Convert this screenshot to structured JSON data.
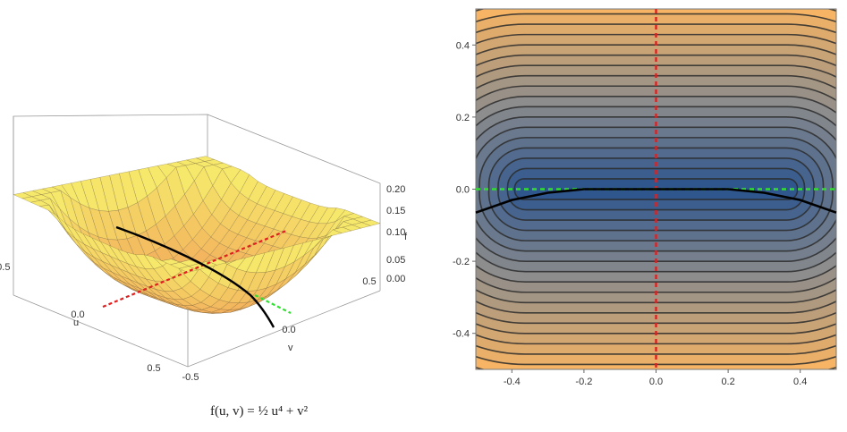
{
  "chart_data": [
    {
      "type": "surface3d",
      "x_axis": {
        "label": "u",
        "ticks": [
          "-0.5",
          "0.0",
          "0.5"
        ]
      },
      "y_axis": {
        "label": "v",
        "ticks": [
          "-0.5",
          "0.0",
          "0.5"
        ]
      },
      "z_axis": {
        "label": "f",
        "ticks": [
          "0.00",
          "0.05",
          "0.10",
          "0.15",
          "0.20"
        ]
      },
      "xlim": [
        -0.5,
        0.5
      ],
      "ylim": [
        -0.5,
        0.5
      ],
      "zlim": [
        0.0,
        0.22
      ],
      "mesh_lines": 20,
      "surface_color": [
        "#f6e86a",
        "#f2a65a"
      ],
      "curves": [
        {
          "name": "u-axis",
          "style": "dashed",
          "color": "#e02020"
        },
        {
          "name": "v-axis",
          "style": "dashed",
          "color": "#33dd33"
        },
        {
          "name": "path",
          "style": "solid",
          "color": "#000000"
        }
      ]
    },
    {
      "type": "contour",
      "x_ticks": [
        "-0.4",
        "-0.2",
        "0.0",
        "0.2",
        "0.4"
      ],
      "y_ticks": [
        "-0.4",
        "-0.2",
        "0.0",
        "0.2",
        "0.4"
      ],
      "xlim": [
        -0.5,
        0.5
      ],
      "ylim": [
        -0.5,
        0.5
      ],
      "levels": 18,
      "colors": {
        "low": "#23508e",
        "mid": "#8d8d8d",
        "high": "#f6b464"
      },
      "lines": [
        {
          "name": "vertical-dashed",
          "x": 0.0,
          "color": "#e02020",
          "style": "dashed"
        },
        {
          "name": "horizontal-dashed",
          "y": 0.0,
          "color": "#33dd33",
          "style": "dashed"
        },
        {
          "name": "curve",
          "points": [
            [
              -0.5,
              -0.065
            ],
            [
              -0.4,
              -0.03
            ],
            [
              -0.3,
              -0.01
            ],
            [
              -0.2,
              0.0
            ],
            [
              -0.1,
              0.0
            ],
            [
              0.0,
              0.0
            ],
            [
              0.1,
              0.0
            ],
            [
              0.2,
              0.0
            ],
            [
              0.3,
              -0.01
            ],
            [
              0.4,
              -0.03
            ],
            [
              0.5,
              -0.065
            ]
          ],
          "color": "#000000",
          "style": "solid"
        }
      ]
    }
  ],
  "formula": {
    "text": "f(u, v) = ½ u⁴ + v²"
  }
}
